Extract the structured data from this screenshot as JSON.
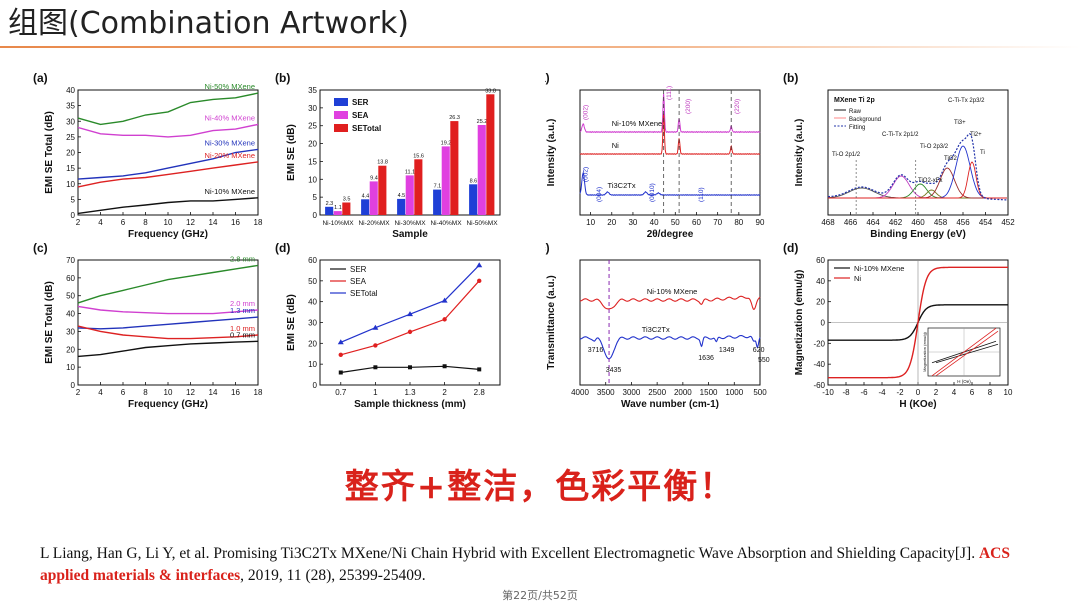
{
  "slide": {
    "title": "组图(Combination Artwork)",
    "slogan": "整齐+整洁，色彩平衡！",
    "citation": {
      "before": "L Liang, Han G, Li Y, et al. Promising Ti3C2Tx MXene/Ni Chain Hybrid with Excellent Electromagnetic Wave Absorption and Shielding Capacity[J]. ",
      "journal": "ACS applied materials & interfaces",
      "after": ", 2019, 11 (28), 25399-25409."
    },
    "page_indicator": "第22页/共52页"
  },
  "chart_data": [
    {
      "id": "left-a",
      "panel_label": "(a)",
      "type": "line",
      "xlabel": "Frequency (GHz)",
      "ylabel": "EMI SE Total (dB)",
      "xlim": [
        2,
        18
      ],
      "ylim": [
        0,
        40
      ],
      "xticks": [
        2,
        4,
        6,
        8,
        10,
        12,
        14,
        16,
        18
      ],
      "yticks": [
        0,
        5,
        10,
        15,
        20,
        25,
        30,
        35,
        40
      ],
      "series": [
        {
          "name": "Ni-50% MXene",
          "color": "#2a8a2a",
          "x": [
            2,
            4,
            6,
            8,
            10,
            12,
            14,
            16,
            18
          ],
          "values": [
            31,
            29,
            30,
            32,
            33,
            36,
            37,
            37.5,
            39
          ]
        },
        {
          "name": "Ni-40% MXene",
          "color": "#d040d0",
          "x": [
            2,
            4,
            6,
            8,
            10,
            12,
            14,
            16,
            18
          ],
          "values": [
            28,
            26,
            25.5,
            25.5,
            25,
            25.5,
            27,
            27.5,
            29
          ]
        },
        {
          "name": "Ni-30% MXene",
          "color": "#2233bb",
          "x": [
            2,
            4,
            6,
            8,
            10,
            12,
            14,
            16,
            18
          ],
          "values": [
            11.5,
            12,
            12.5,
            13.5,
            15,
            16.5,
            18,
            20,
            21
          ]
        },
        {
          "name": "Ni-20% MXene",
          "color": "#dd2222",
          "x": [
            2,
            4,
            6,
            8,
            10,
            12,
            14,
            16,
            18
          ],
          "values": [
            9,
            10.5,
            11.5,
            12,
            13,
            14,
            15,
            16,
            17
          ]
        },
        {
          "name": "Ni-10% MXene",
          "color": "#111111",
          "x": [
            2,
            4,
            6,
            8,
            10,
            12,
            14,
            16,
            18
          ],
          "values": [
            0.5,
            1.5,
            2.5,
            3.2,
            4,
            4.5,
            4.5,
            5,
            5.5
          ]
        }
      ]
    },
    {
      "id": "left-b",
      "panel_label": "(b)",
      "type": "bar",
      "xlabel": "Sample",
      "ylabel": "EMI SE (dB)",
      "ylim": [
        0,
        35
      ],
      "yticks": [
        0,
        5,
        10,
        15,
        20,
        25,
        30,
        35
      ],
      "categories": [
        "Ni-10%MX",
        "Ni-20%MX",
        "Ni-30%MX",
        "Ni-40%MX",
        "Ni-50%MX"
      ],
      "series": [
        {
          "name": "SE_R",
          "color": "#1f3fd6",
          "values": [
            2.3,
            4.4,
            4.5,
            7.1,
            8.6
          ],
          "labels": [
            "2.3",
            "4.4",
            "4.5",
            "7.1",
            "8.6"
          ]
        },
        {
          "name": "SE_A",
          "color": "#e040e0",
          "values": [
            1.1,
            9.4,
            11.1,
            19.2,
            25.2
          ],
          "labels": [
            "1.1",
            "9.4",
            "11.1",
            "19.2",
            "25.2"
          ]
        },
        {
          "name": "SE_Total",
          "color": "#e01f1f",
          "values": [
            3.5,
            13.8,
            15.6,
            26.3,
            33.8
          ],
          "labels": [
            "3.5",
            "13.8",
            "15.6",
            "26.3",
            "33.8"
          ]
        }
      ],
      "legend_position": "top-left"
    },
    {
      "id": "left-c",
      "panel_label": "(c)",
      "type": "line",
      "xlabel": "Frequency (GHz)",
      "ylabel": "EMI SE Total (dB)",
      "xlim": [
        2,
        18
      ],
      "ylim": [
        0,
        70
      ],
      "xticks": [
        2,
        4,
        6,
        8,
        10,
        12,
        14,
        16,
        18
      ],
      "yticks": [
        0,
        10,
        20,
        30,
        40,
        50,
        60,
        70
      ],
      "series": [
        {
          "name": "2.8 mm",
          "color": "#2a8a2a",
          "x": [
            2,
            4,
            6,
            8,
            10,
            12,
            14,
            16,
            18
          ],
          "values": [
            46,
            50,
            53,
            56,
            59,
            61,
            63,
            65,
            67
          ]
        },
        {
          "name": "2.0 mm",
          "color": "#d040d0",
          "x": [
            2,
            4,
            6,
            8,
            10,
            12,
            14,
            16,
            18
          ],
          "values": [
            44,
            42,
            41,
            40.5,
            40,
            40,
            40,
            41,
            42
          ]
        },
        {
          "name": "1.3 mm",
          "color": "#2233bb",
          "x": [
            2,
            4,
            6,
            8,
            10,
            12,
            14,
            16,
            18
          ],
          "values": [
            32,
            31.5,
            32,
            33,
            34,
            35,
            36,
            37,
            38
          ]
        },
        {
          "name": "1.0 mm",
          "color": "#dd2222",
          "x": [
            2,
            4,
            6,
            8,
            10,
            12,
            14,
            16,
            18
          ],
          "values": [
            33,
            30,
            28,
            27,
            26,
            26,
            26.5,
            27,
            28
          ]
        },
        {
          "name": "0.7 mm",
          "color": "#111111",
          "x": [
            2,
            4,
            6,
            8,
            10,
            12,
            14,
            16,
            18
          ],
          "values": [
            16,
            17,
            19,
            21,
            22,
            23,
            23.5,
            24,
            24.5
          ]
        }
      ]
    },
    {
      "id": "left-d",
      "panel_label": "(d)",
      "type": "line",
      "xlabel": "Sample thickness (mm)",
      "ylabel": "EMI SE (dB)",
      "categories": [
        "0.7",
        "1",
        "1.3",
        "2",
        "2.8"
      ],
      "ylim": [
        0,
        60
      ],
      "yticks": [
        0,
        10,
        20,
        30,
        40,
        50,
        60
      ],
      "series": [
        {
          "name": "SE_R",
          "color": "#111111",
          "marker": "square",
          "values": [
            6,
            8.5,
            8.5,
            9,
            7.5
          ]
        },
        {
          "name": "SE_A",
          "color": "#e02020",
          "marker": "circle",
          "values": [
            14.5,
            19,
            25.5,
            31.5,
            50
          ]
        },
        {
          "name": "SE_Total",
          "color": "#2233cc",
          "marker": "triangle",
          "values": [
            20.5,
            27.5,
            34,
            40.5,
            57.5
          ]
        }
      ],
      "legend_position": "top-left"
    },
    {
      "id": "right-a",
      "panel_label": "(a)",
      "type": "line",
      "xlabel": "2θ/degree",
      "ylabel": "Intensity (a.u.)",
      "xlim": [
        5,
        90
      ],
      "xticks": [
        10,
        20,
        30,
        40,
        50,
        60,
        70,
        80,
        90
      ],
      "series": [
        {
          "name": "Ni-10% MXene",
          "color": "#d040d0"
        },
        {
          "name": "Ni",
          "color": "#dd2222"
        },
        {
          "name": "Ti3C2Tx",
          "color": "#2233cc"
        }
      ],
      "annotations": [
        "(002)",
        "(111)",
        "(200)",
        "(220)",
        "(002)",
        "(004)",
        "(0010)",
        "(110)"
      ]
    },
    {
      "id": "right-b",
      "panel_label": "(b)",
      "type": "line",
      "xlabel": "Binding Energy (eV)",
      "ylabel": "Intensity (a.u.)",
      "xlim": [
        468,
        452
      ],
      "xticks": [
        468,
        466,
        464,
        462,
        460,
        458,
        456,
        454,
        452
      ],
      "legend_title": "MXene Ti 2p",
      "legend": [
        "Raw",
        "Background",
        "Fitting"
      ],
      "annotations": [
        "Ti-O 2p1/2",
        "C-Ti-Tx 2p1/2",
        "Ti-O 2p3/2",
        "TiO2-xFx",
        "TiO2",
        "Ti3+",
        "Ti2+",
        "C-Ti-Tx 2p3/2",
        "Ti"
      ]
    },
    {
      "id": "right-c",
      "panel_label": "(c)",
      "type": "line",
      "xlabel": "Wave number (cm-1)",
      "ylabel": "Transmittance (a.u.)",
      "xlim": [
        4000,
        500
      ],
      "xticks": [
        4000,
        3500,
        3000,
        2500,
        2000,
        1500,
        1000,
        500
      ],
      "series": [
        {
          "name": "Ni-10% MXene",
          "color": "#dd2222"
        },
        {
          "name": "Ti3C2Tx",
          "color": "#2233cc"
        }
      ],
      "annotations": [
        "3716",
        "3435",
        "1636",
        "1349",
        "620",
        "550"
      ]
    },
    {
      "id": "right-d",
      "panel_label": "(d)",
      "type": "line",
      "xlabel": "H (KOe)",
      "ylabel": "Magnetization (emu/g)",
      "xlim": [
        -10,
        10
      ],
      "ylim": [
        -60,
        60
      ],
      "xticks": [
        -10,
        -8,
        -6,
        -4,
        -2,
        0,
        2,
        4,
        6,
        8,
        10
      ],
      "yticks": [
        -60,
        -40,
        -20,
        0,
        20,
        40,
        60
      ],
      "series": [
        {
          "name": "Ni-10% MXene",
          "color": "#111111",
          "ms": 17
        },
        {
          "name": "Ni",
          "color": "#dd2222",
          "ms": 53
        }
      ],
      "inset": {
        "xlabel": "H (Oe)",
        "ylabel": "Magnetization (emu/g)"
      }
    }
  ]
}
